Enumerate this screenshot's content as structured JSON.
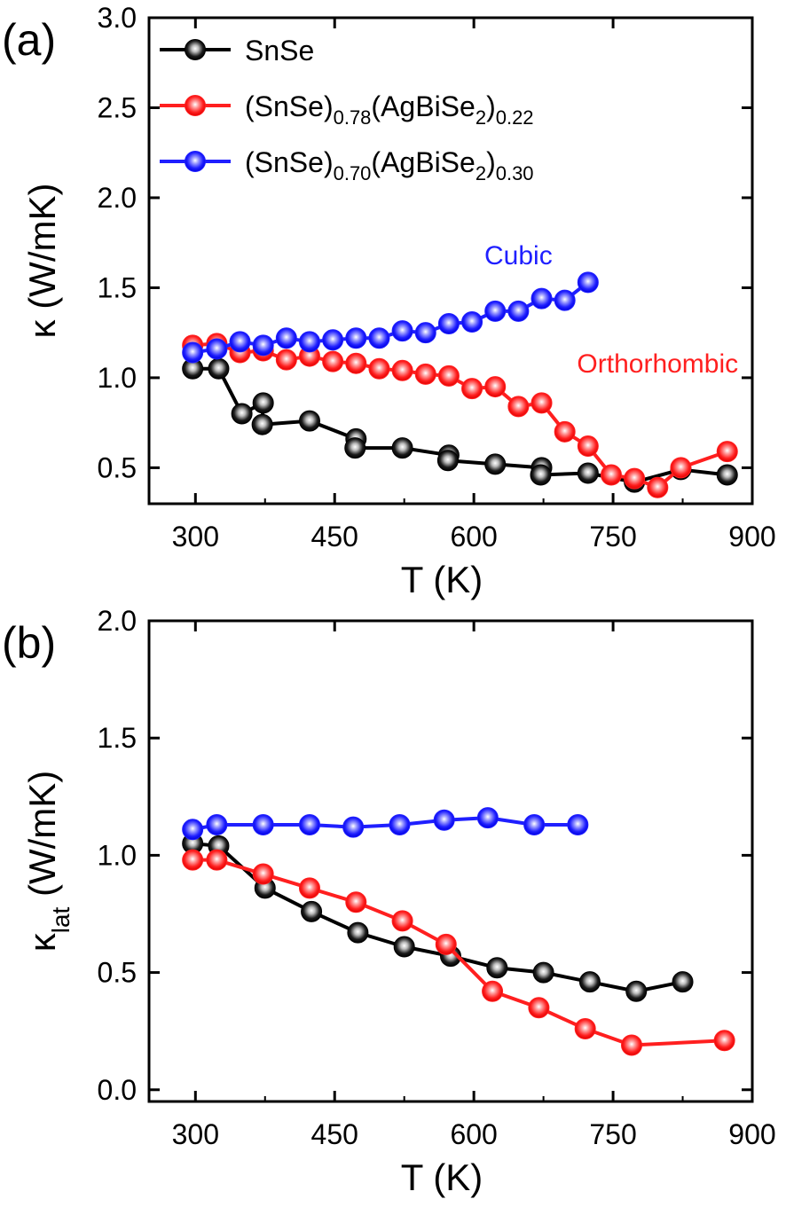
{
  "chart_data": [
    {
      "type": "line",
      "panel_label": "(a)",
      "xlabel": "T (K)",
      "ylabel": "κ (W/mK)",
      "xlim": [
        250,
        900
      ],
      "ylim": [
        0.3,
        3.0
      ],
      "xticks": [
        300,
        450,
        600,
        750,
        900
      ],
      "yticks": [
        0.5,
        1.0,
        1.5,
        2.0,
        2.5,
        3.0
      ],
      "xtick_labels": [
        "300",
        "450",
        "600",
        "750",
        "900"
      ],
      "ytick_labels": [
        "0.5",
        "1.0",
        "1.5",
        "2.0",
        "2.5",
        "3.0"
      ],
      "legend_position": "top-left",
      "legend": [
        {
          "name": "SnSe",
          "color": "#000000",
          "parts": [
            {
              "t": "SnSe"
            }
          ]
        },
        {
          "name": "(SnSe)0.78(AgBiSe2)0.22",
          "color": "#ff1f1f",
          "parts": [
            {
              "t": "(SnSe)"
            },
            {
              "t": "0.78",
              "sub": true
            },
            {
              "t": "(AgBiSe"
            },
            {
              "t": "2",
              "sub": true
            },
            {
              "t": ")"
            },
            {
              "t": "0.22",
              "sub": true
            }
          ]
        },
        {
          "name": "(SnSe)0.70(AgBiSe2)0.30",
          "color": "#1f1fff",
          "parts": [
            {
              "t": "(SnSe)"
            },
            {
              "t": "0.70",
              "sub": true
            },
            {
              "t": "(AgBiSe"
            },
            {
              "t": "2",
              "sub": true
            },
            {
              "t": ")"
            },
            {
              "t": "0.30",
              "sub": true
            }
          ]
        }
      ],
      "annotations": [
        {
          "text": "Cubic",
          "x": 648,
          "y": 1.63,
          "color": "#1f1fff"
        },
        {
          "text": "Orthorhombic",
          "x": 798,
          "y": 1.03,
          "color": "#ff1f1f"
        }
      ],
      "series": [
        {
          "name": "SnSe",
          "color": "#000000",
          "points": [
            [
              297,
              1.05
            ],
            [
              325,
              1.05
            ],
            [
              350,
              0.8
            ],
            [
              373,
              0.86
            ],
            [
              372,
              0.74
            ],
            [
              423,
              0.76
            ],
            [
              473,
              0.66
            ],
            [
              472,
              0.61
            ],
            [
              523,
              0.61
            ],
            [
              573,
              0.57
            ],
            [
              572,
              0.54
            ],
            [
              623,
              0.52
            ],
            [
              673,
              0.5
            ],
            [
              672,
              0.46
            ],
            [
              723,
              0.47
            ],
            [
              773,
              0.42
            ],
            [
              823,
              0.49
            ],
            [
              873,
              0.46
            ]
          ]
        },
        {
          "name": "(SnSe)0.78(AgBiSe2)0.22",
          "color": "#ff1f1f",
          "points": [
            [
              297,
              1.18
            ],
            [
              323,
              1.19
            ],
            [
              348,
              1.14
            ],
            [
              373,
              1.15
            ],
            [
              398,
              1.1
            ],
            [
              423,
              1.12
            ],
            [
              448,
              1.09
            ],
            [
              473,
              1.08
            ],
            [
              498,
              1.05
            ],
            [
              523,
              1.04
            ],
            [
              548,
              1.02
            ],
            [
              573,
              1.01
            ],
            [
              598,
              0.94
            ],
            [
              623,
              0.95
            ],
            [
              648,
              0.84
            ],
            [
              673,
              0.86
            ],
            [
              698,
              0.7
            ],
            [
              723,
              0.62
            ],
            [
              748,
              0.46
            ],
            [
              773,
              0.44
            ],
            [
              798,
              0.39
            ],
            [
              823,
              0.5
            ],
            [
              873,
              0.59
            ]
          ]
        },
        {
          "name": "(SnSe)0.70(AgBiSe2)0.30",
          "color": "#1f1fff",
          "points": [
            [
              297,
              1.14
            ],
            [
              323,
              1.16
            ],
            [
              348,
              1.2
            ],
            [
              373,
              1.18
            ],
            [
              398,
              1.22
            ],
            [
              423,
              1.2
            ],
            [
              448,
              1.21
            ],
            [
              473,
              1.22
            ],
            [
              498,
              1.22
            ],
            [
              523,
              1.26
            ],
            [
              548,
              1.25
            ],
            [
              573,
              1.3
            ],
            [
              598,
              1.31
            ],
            [
              623,
              1.37
            ],
            [
              648,
              1.37
            ],
            [
              673,
              1.44
            ],
            [
              698,
              1.43
            ],
            [
              723,
              1.53
            ]
          ]
        }
      ]
    },
    {
      "type": "line",
      "panel_label": "(b)",
      "xlabel": "T (K)",
      "ylabel": "κlat (W/mK)",
      "xlim": [
        250,
        900
      ],
      "ylim": [
        -0.05,
        2.0
      ],
      "xticks": [
        300,
        450,
        600,
        750,
        900
      ],
      "yticks": [
        0.0,
        0.5,
        1.0,
        1.5,
        2.0
      ],
      "xtick_labels": [
        "300",
        "450",
        "600",
        "750",
        "900"
      ],
      "ytick_labels": [
        "0.0",
        "0.5",
        "1.0",
        "1.5",
        "2.0"
      ],
      "series": [
        {
          "name": "SnSe",
          "color": "#000000",
          "points": [
            [
              297,
              1.05
            ],
            [
              325,
              1.04
            ],
            [
              375,
              0.86
            ],
            [
              425,
              0.76
            ],
            [
              475,
              0.67
            ],
            [
              525,
              0.61
            ],
            [
              575,
              0.57
            ],
            [
              625,
              0.52
            ],
            [
              675,
              0.5
            ],
            [
              725,
              0.46
            ],
            [
              775,
              0.42
            ],
            [
              825,
              0.46
            ]
          ]
        },
        {
          "name": "(SnSe)0.78(AgBiSe2)0.22",
          "color": "#ff1f1f",
          "points": [
            [
              297,
              0.98
            ],
            [
              323,
              0.98
            ],
            [
              373,
              0.92
            ],
            [
              423,
              0.86
            ],
            [
              473,
              0.8
            ],
            [
              523,
              0.72
            ],
            [
              570,
              0.62
            ],
            [
              620,
              0.42
            ],
            [
              670,
              0.35
            ],
            [
              720,
              0.26
            ],
            [
              770,
              0.19
            ],
            [
              870,
              0.21
            ]
          ]
        },
        {
          "name": "(SnSe)0.70(AgBiSe2)0.30",
          "color": "#1f1fff",
          "points": [
            [
              297,
              1.11
            ],
            [
              323,
              1.13
            ],
            [
              373,
              1.13
            ],
            [
              423,
              1.13
            ],
            [
              470,
              1.12
            ],
            [
              520,
              1.13
            ],
            [
              568,
              1.15
            ],
            [
              615,
              1.16
            ],
            [
              665,
              1.13
            ],
            [
              712,
              1.13
            ]
          ]
        }
      ]
    }
  ]
}
